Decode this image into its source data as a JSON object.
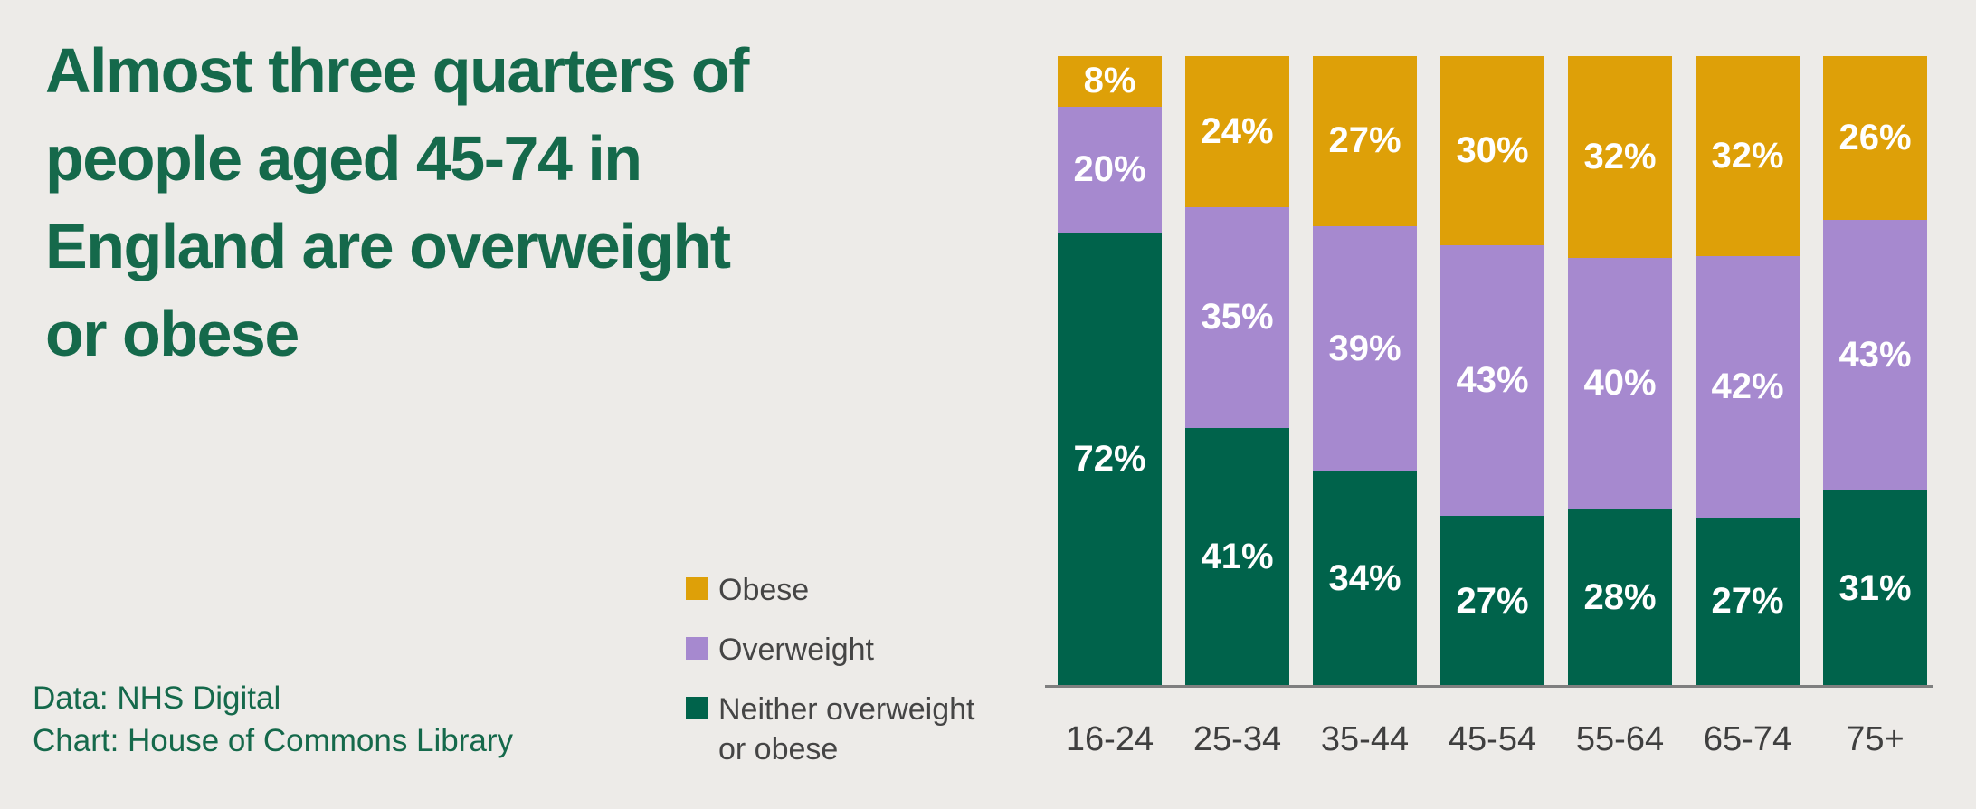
{
  "background_color": "#EDEBE8",
  "title": {
    "color": "#15694B",
    "lines": [
      "Almost three quarters of",
      "people aged 45-74 in",
      "England are overweight",
      "or obese"
    ]
  },
  "source": {
    "color": "#15694B",
    "lines": [
      "Data: NHS Digital",
      "Chart: House of Commons Library"
    ]
  },
  "legend": {
    "text_color": "#454545",
    "items": [
      {
        "label": "Obese",
        "color": "#DEA008"
      },
      {
        "label": "Overweight",
        "color": "#A689CF"
      },
      {
        "label": "Neither overweight or obese",
        "color": "#00634B"
      }
    ]
  },
  "chart_data": {
    "type": "bar",
    "stacked": true,
    "orientation": "vertical",
    "title": "Almost three quarters of people aged 45-74 in England are overweight or obese",
    "xlabel": "",
    "ylabel": "",
    "ylim": [
      0,
      100
    ],
    "grid": false,
    "legend_position": "left-of-plot",
    "value_suffix": "%",
    "categories": [
      "16-24",
      "25-34",
      "35-44",
      "45-54",
      "55-64",
      "65-74",
      "75+"
    ],
    "series": [
      {
        "name": "Neither overweight or obese",
        "color": "#00634B",
        "values": [
          72,
          41,
          34,
          27,
          28,
          27,
          31
        ]
      },
      {
        "name": "Overweight",
        "color": "#A689CF",
        "values": [
          20,
          35,
          39,
          43,
          40,
          42,
          43
        ]
      },
      {
        "name": "Obese",
        "color": "#DEA008",
        "values": [
          8,
          24,
          27,
          30,
          32,
          32,
          26
        ]
      }
    ],
    "axis_line_color": "#7F7F7F",
    "tick_label_color": "#3F3F3F"
  }
}
